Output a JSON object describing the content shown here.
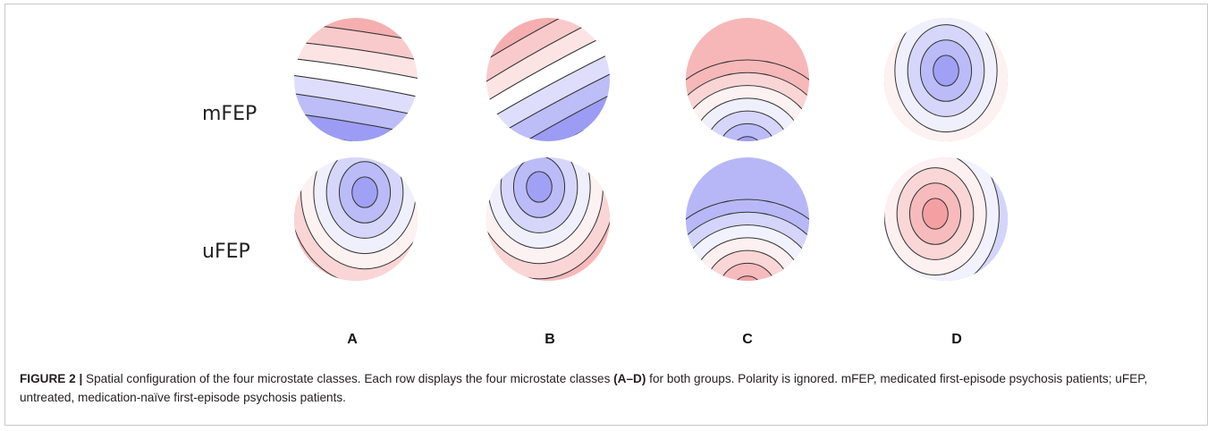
{
  "figure": {
    "rows": [
      {
        "label": "mFEP"
      },
      {
        "label": "uFEP"
      }
    ],
    "columns": [
      {
        "label": "A"
      },
      {
        "label": "B"
      },
      {
        "label": "C"
      },
      {
        "label": "D"
      }
    ]
  },
  "caption": {
    "figure_label": "FIGURE 2 |",
    "text_1": " Spatial configuration of the four microstate classes. Each row displays the four microstate classes ",
    "bold_ref": "(A–D)",
    "text_2": " for both groups. Polarity is ignored. mFEP, medicated first-episode psychosis patients; uFEP, untreated, medication-naïve first-episode psychosis patients."
  },
  "colors": {
    "positive": "#ee6f73",
    "negative": "#6f6ff0",
    "contour": "#333333"
  }
}
